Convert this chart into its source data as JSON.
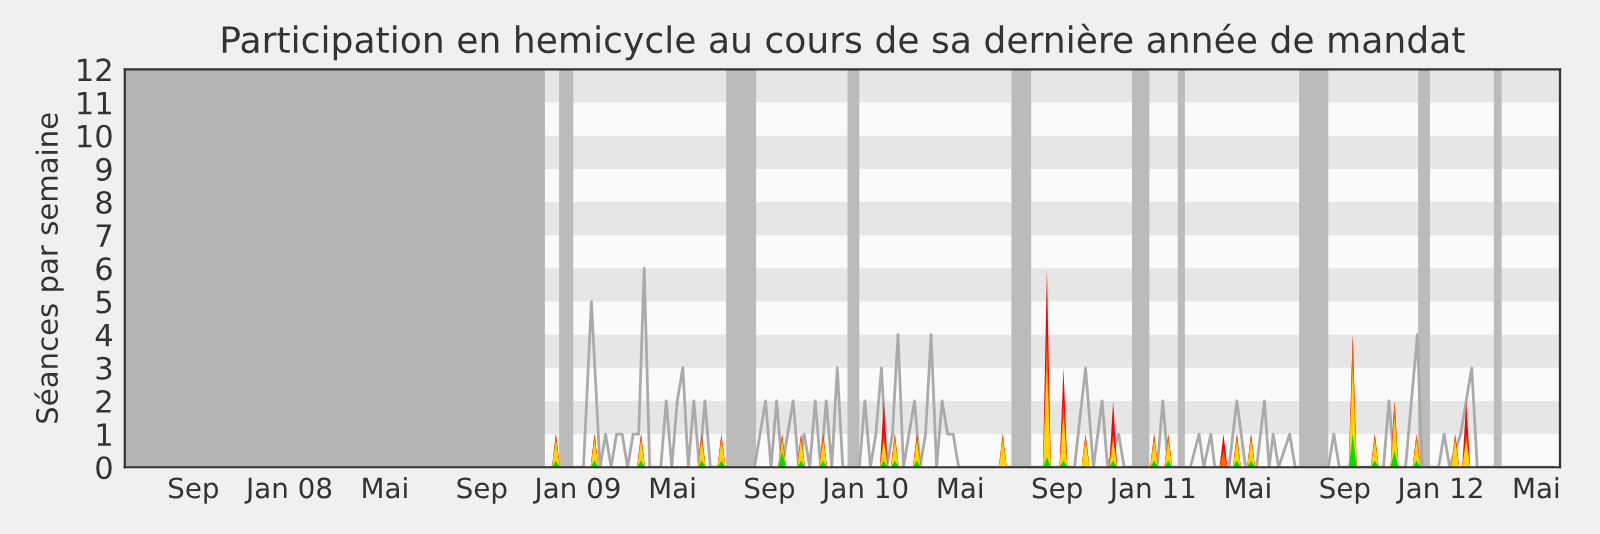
{
  "chart_data": {
    "type": "area",
    "title": "Participation en hemicycle au cours de sa dernière année de mandat",
    "ylabel": "Séances par semaine",
    "xlim": [
      "2007-06-06",
      "2012-05-31"
    ],
    "ylim": [
      0,
      12
    ],
    "xticks": [
      {
        "value": "2007-09-01",
        "label": "Sep"
      },
      {
        "value": "2008-01-01",
        "label": "Jan 08"
      },
      {
        "value": "2008-05-01",
        "label": "Mai"
      },
      {
        "value": "2008-09-01",
        "label": "Sep"
      },
      {
        "value": "2009-01-01",
        "label": "Jan 09"
      },
      {
        "value": "2009-05-01",
        "label": "Mai"
      },
      {
        "value": "2009-09-01",
        "label": "Sep"
      },
      {
        "value": "2010-01-01",
        "label": "Jan 10"
      },
      {
        "value": "2010-05-01",
        "label": "Mai"
      },
      {
        "value": "2010-09-01",
        "label": "Sep"
      },
      {
        "value": "2011-01-01",
        "label": "Jan 11"
      },
      {
        "value": "2011-05-01",
        "label": "Mai"
      },
      {
        "value": "2011-09-01",
        "label": "Sep"
      },
      {
        "value": "2012-01-01",
        "label": "Jan 12"
      },
      {
        "value": "2012-05-01",
        "label": "Mai"
      }
    ],
    "yticks": [
      0,
      1,
      2,
      3,
      4,
      5,
      6,
      7,
      8,
      9,
      10,
      11,
      12
    ],
    "grid": false,
    "legend": false,
    "bands": [
      {
        "axis": "y",
        "from": 1,
        "to": 2,
        "color": "#e6e6e6"
      },
      {
        "axis": "y",
        "from": 3,
        "to": 4,
        "color": "#e6e6e6"
      },
      {
        "axis": "y",
        "from": 5,
        "to": 6,
        "color": "#e6e6e6"
      },
      {
        "axis": "y",
        "from": 7,
        "to": 8,
        "color": "#e6e6e6"
      },
      {
        "axis": "y",
        "from": 9,
        "to": 10,
        "color": "#e6e6e6"
      },
      {
        "axis": "y",
        "from": 11,
        "to": 12,
        "color": "#e6e6e6"
      },
      {
        "axis": "x",
        "from": "2007-06-06",
        "to": "2008-11-20",
        "color": "#b4b4b4"
      },
      {
        "axis": "x",
        "from": "2008-12-08",
        "to": "2008-12-26",
        "color": "#bbbbbb"
      },
      {
        "axis": "x",
        "from": "2009-07-08",
        "to": "2009-08-15",
        "color": "#bbbbbb"
      },
      {
        "axis": "x",
        "from": "2009-12-09",
        "to": "2009-12-24",
        "color": "#bbbbbb"
      },
      {
        "axis": "x",
        "from": "2010-07-05",
        "to": "2010-07-30",
        "color": "#bbbbbb"
      },
      {
        "axis": "x",
        "from": "2010-12-05",
        "to": "2010-12-27",
        "color": "#bbbbbb"
      },
      {
        "axis": "x",
        "from": "2011-02-01",
        "to": "2011-02-10",
        "color": "#bbbbbb"
      },
      {
        "axis": "x",
        "from": "2011-07-05",
        "to": "2011-08-11",
        "color": "#bbbbbb"
      },
      {
        "axis": "x",
        "from": "2011-12-03",
        "to": "2011-12-18",
        "color": "#bbbbbb"
      },
      {
        "axis": "x",
        "from": "2012-03-08",
        "to": "2012-03-18",
        "color": "#bbbbbb"
      }
    ],
    "x": [
      "2008-11-29",
      "2008-12-04",
      "2008-12-09",
      "2009-01-17",
      "2009-01-22",
      "2009-01-27",
      "2009-03-17",
      "2009-03-22",
      "2009-03-27",
      "2009-06-02",
      "2009-06-07",
      "2009-06-12",
      "2009-06-27",
      "2009-07-02",
      "2009-07-07",
      "2009-09-12",
      "2009-09-17",
      "2009-09-22",
      "2009-10-06",
      "2009-10-11",
      "2009-10-16",
      "2009-11-03",
      "2009-11-08",
      "2009-11-13",
      "2010-01-19",
      "2010-01-24",
      "2010-01-29",
      "2010-02-02",
      "2010-02-07",
      "2010-02-12",
      "2010-03-02",
      "2010-03-07",
      "2010-03-12",
      "2010-06-19",
      "2010-06-24",
      "2010-06-29",
      "2010-08-14",
      "2010-08-19",
      "2010-08-24",
      "2010-09-04",
      "2010-09-09",
      "2010-09-14",
      "2010-10-02",
      "2010-10-07",
      "2010-10-12",
      "2010-11-06",
      "2010-11-11",
      "2010-11-16",
      "2010-12-28",
      "2011-01-02",
      "2011-01-07",
      "2011-01-15",
      "2011-01-20",
      "2011-01-25",
      "2011-03-26",
      "2011-03-31",
      "2011-04-05",
      "2011-04-12",
      "2011-04-17",
      "2011-04-22",
      "2011-04-30",
      "2011-05-05",
      "2011-05-10",
      "2011-09-06",
      "2011-09-11",
      "2011-09-16",
      "2011-10-04",
      "2011-10-09",
      "2011-10-14",
      "2011-10-29",
      "2011-11-03",
      "2011-11-08",
      "2011-11-26",
      "2011-12-01",
      "2011-12-06",
      "2012-01-14",
      "2012-01-19",
      "2012-01-24",
      "2012-01-28",
      "2012-02-02",
      "2012-02-07"
    ],
    "series": [
      {
        "type": "line",
        "color": "#aaaaaa",
        "x": [
          "2008-11-27",
          "2009-01-08",
          "2009-01-18",
          "2009-01-29",
          "2009-02-05",
          "2009-02-12",
          "2009-02-19",
          "2009-02-26",
          "2009-03-05",
          "2009-03-12",
          "2009-03-19",
          "2009-03-26",
          "2009-04-02",
          "2009-04-16",
          "2009-04-23",
          "2009-04-30",
          "2009-05-07",
          "2009-05-14",
          "2009-05-21",
          "2009-05-28",
          "2009-06-04",
          "2009-06-11",
          "2009-06-18",
          "2009-07-02",
          "2009-08-13",
          "2009-08-20",
          "2009-08-27",
          "2009-09-03",
          "2009-09-10",
          "2009-09-17",
          "2009-09-24",
          "2009-10-01",
          "2009-10-08",
          "2009-10-15",
          "2009-10-22",
          "2009-10-29",
          "2009-11-05",
          "2009-11-12",
          "2009-11-19",
          "2009-11-26",
          "2009-12-03",
          "2009-12-24",
          "2009-12-31",
          "2010-01-07",
          "2010-01-14",
          "2010-01-21",
          "2010-01-28",
          "2010-02-04",
          "2010-02-11",
          "2010-02-18",
          "2010-02-25",
          "2010-03-04",
          "2010-03-11",
          "2010-03-18",
          "2010-03-25",
          "2010-04-01",
          "2010-04-08",
          "2010-04-15",
          "2010-04-22",
          "2010-04-29",
          "2010-05-27",
          "2010-09-09",
          "2010-09-23",
          "2010-10-07",
          "2010-10-17",
          "2010-10-28",
          "2010-11-04",
          "2010-11-18",
          "2010-11-25",
          "2011-01-06",
          "2011-01-13",
          "2011-01-20",
          "2011-02-17",
          "2011-02-28",
          "2011-03-06",
          "2011-03-15",
          "2011-03-20",
          "2011-04-07",
          "2011-04-17",
          "2011-04-28",
          "2011-05-12",
          "2011-05-22",
          "2011-05-28",
          "2011-06-02",
          "2011-06-09",
          "2011-06-23",
          "2011-06-30",
          "2011-08-11",
          "2011-08-18",
          "2011-08-25",
          "2011-10-20",
          "2011-10-27",
          "2011-11-03",
          "2011-11-17",
          "2011-12-02",
          "2011-12-08",
          "2011-12-29",
          "2012-01-05",
          "2012-01-12",
          "2012-01-26",
          "2012-02-09",
          "2012-02-16",
          "2012-05-24"
        ],
        "values": [
          0,
          0,
          5,
          0,
          1,
          0,
          1,
          1,
          0,
          1,
          1,
          6,
          0,
          0,
          2,
          0,
          2,
          3,
          0,
          2,
          0,
          2,
          0,
          0,
          0,
          1,
          2,
          0,
          2,
          0,
          1,
          2,
          0,
          1,
          0,
          2,
          0,
          2,
          0,
          3,
          0,
          0,
          2,
          0,
          1,
          3,
          0,
          1,
          4,
          0,
          1,
          2,
          0,
          1,
          4,
          0,
          2,
          1,
          1,
          0,
          0,
          0,
          0,
          3,
          0,
          2,
          0,
          1,
          0,
          0,
          2,
          0,
          0,
          1,
          0,
          1,
          0,
          0,
          2,
          0,
          0,
          2,
          0,
          1,
          0,
          1,
          0,
          0,
          1,
          0,
          0,
          2,
          0,
          0,
          4,
          0,
          0,
          1,
          0,
          1,
          3,
          0,
          0
        ]
      },
      {
        "color": "#ff0000",
        "values": [
          0,
          1,
          0,
          0,
          1,
          0,
          0,
          1,
          0,
          0,
          1,
          0,
          0,
          1,
          0,
          0,
          1,
          0,
          0,
          1,
          0,
          0,
          1,
          0,
          0,
          2,
          0,
          0,
          1,
          0,
          0,
          1,
          0,
          0,
          1,
          0,
          0,
          6,
          0,
          0,
          3,
          0,
          0,
          1,
          0,
          0,
          2,
          0,
          0,
          1,
          0,
          0,
          1,
          0,
          0,
          1,
          0,
          0,
          1,
          0,
          0,
          1,
          0,
          0,
          4,
          0,
          0,
          1,
          0,
          0,
          2,
          0,
          0,
          1,
          0,
          0,
          1,
          0,
          0,
          2,
          0
        ]
      },
      {
        "color": "#ff6600",
        "values": [
          0,
          1,
          0,
          0,
          1,
          0,
          0,
          1,
          0,
          0,
          1,
          0,
          0,
          1,
          0,
          0,
          1,
          0,
          0,
          1,
          0,
          0,
          1,
          0,
          0,
          1,
          0,
          0,
          1,
          0,
          0,
          1,
          0,
          0,
          1,
          0,
          0,
          4,
          0,
          0,
          2,
          0,
          0,
          1,
          0,
          0,
          1,
          0,
          0,
          1,
          0,
          0,
          1,
          0,
          0,
          0.5,
          0,
          0,
          1,
          0,
          0,
          1,
          0,
          0,
          4,
          0,
          0,
          1,
          0,
          0,
          2,
          0,
          0,
          1,
          0,
          0,
          1,
          0,
          0,
          1,
          0
        ]
      },
      {
        "color": "#ffd700",
        "values": [
          0,
          0.8,
          0,
          0,
          0.8,
          0,
          0,
          0.8,
          0,
          0,
          0.8,
          0,
          0,
          0.8,
          0,
          0,
          0.8,
          0,
          0,
          0.8,
          0,
          0,
          0.8,
          0,
          0,
          0.8,
          0,
          0,
          0.8,
          0,
          0,
          0.8,
          0,
          0,
          0.8,
          0,
          0,
          3,
          0,
          0,
          1.5,
          0,
          0,
          0.8,
          0,
          0,
          0.8,
          0,
          0,
          0.8,
          0,
          0,
          0.8,
          0,
          0,
          0,
          0,
          0,
          0.8,
          0,
          0,
          0.8,
          0,
          0,
          3,
          0,
          0,
          0.8,
          0,
          0,
          1.5,
          0,
          0,
          0.8,
          0,
          0,
          0.8,
          0,
          0,
          0.8,
          0
        ]
      },
      {
        "color": "#00dd00",
        "values": [
          0,
          0.2,
          0,
          0,
          0.2,
          0,
          0,
          0.2,
          0,
          0,
          0.2,
          0,
          0,
          0.2,
          0,
          0,
          0.5,
          0,
          0,
          0.2,
          0,
          0,
          0.2,
          0,
          0,
          0.2,
          0,
          0,
          0.2,
          0,
          0,
          0.2,
          0,
          0,
          0,
          0,
          0,
          0.3,
          0,
          0,
          0.2,
          0,
          0,
          0,
          0,
          0,
          0.2,
          0,
          0,
          0.2,
          0,
          0,
          0.2,
          0,
          0,
          0,
          0,
          0,
          0.2,
          0,
          0,
          0.2,
          0,
          0,
          1,
          0,
          0,
          0.2,
          0,
          0,
          0.5,
          0,
          0,
          0.2,
          0,
          0,
          0,
          0,
          0,
          0,
          0
        ]
      }
    ]
  }
}
